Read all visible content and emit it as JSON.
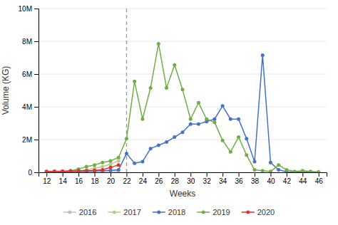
{
  "chart_data": {
    "type": "line",
    "xlabel": "Weeks",
    "ylabel": "Volume (KG)",
    "xlim": [
      11,
      47
    ],
    "ylim": [
      0,
      10000000
    ],
    "xticks": [
      12,
      14,
      16,
      18,
      20,
      22,
      24,
      26,
      28,
      30,
      32,
      34,
      36,
      38,
      40,
      42,
      44,
      46
    ],
    "yticks": [
      0,
      {
        "value": 2000000,
        "label": "2M"
      },
      {
        "value": 4000000,
        "label": "4M"
      },
      {
        "value": 6000000,
        "label": "6M"
      },
      {
        "value": 8000000,
        "label": "8M"
      },
      {
        "value": 10000000,
        "label": "10M"
      }
    ],
    "vline": 22,
    "grid": true,
    "legend": "bottom",
    "marker": "circle",
    "series": [
      {
        "name": "2016",
        "color": "#c0c0c0",
        "x": [
          12,
          13,
          14,
          15,
          16,
          17,
          18,
          19,
          20,
          21
        ],
        "values": [
          20000,
          20000,
          20000,
          30000,
          30000,
          40000,
          50000,
          60000,
          70000,
          80000
        ]
      },
      {
        "name": "2017",
        "color": "#b8cc88",
        "x": [
          12,
          13,
          14,
          15,
          16,
          17,
          18,
          19,
          20,
          21
        ],
        "values": [
          30000,
          30000,
          40000,
          60000,
          100000,
          150000,
          250000,
          350000,
          500000,
          700000
        ]
      },
      {
        "name": "2018",
        "color": "#4472c4",
        "x": [
          12,
          13,
          14,
          15,
          16,
          17,
          18,
          19,
          20,
          21,
          22,
          23,
          24,
          25,
          26,
          27,
          28,
          29,
          30,
          31,
          32,
          33,
          34,
          35,
          36,
          37,
          38,
          39,
          40,
          41,
          42,
          43,
          44,
          45,
          46
        ],
        "values": [
          20000,
          20000,
          30000,
          40000,
          50000,
          70000,
          80000,
          100000,
          120000,
          150000,
          1150000,
          550000,
          650000,
          1450000,
          1650000,
          1850000,
          2150000,
          2450000,
          2950000,
          2950000,
          3100000,
          3250000,
          4050000,
          3250000,
          3250000,
          2050000,
          650000,
          7150000,
          600000,
          150000,
          30000,
          15000,
          10000,
          5000,
          3000
        ]
      },
      {
        "name": "2019",
        "color": "#70ad47",
        "x": [
          12,
          13,
          14,
          15,
          16,
          17,
          18,
          19,
          20,
          21,
          22,
          23,
          24,
          25,
          26,
          27,
          28,
          29,
          30,
          31,
          32,
          33,
          34,
          35,
          36,
          37,
          38,
          39,
          40,
          41,
          42,
          43,
          44,
          45,
          46
        ],
        "values": [
          20000,
          30000,
          50000,
          100000,
          200000,
          350000,
          450000,
          600000,
          700000,
          900000,
          2050000,
          5550000,
          3250000,
          5150000,
          7850000,
          5150000,
          6550000,
          5050000,
          3250000,
          4250000,
          3250000,
          3050000,
          1950000,
          1250000,
          2150000,
          1050000,
          150000,
          100000,
          50000,
          450000,
          150000,
          50000,
          100000,
          50000,
          20000
        ]
      },
      {
        "name": "2020",
        "color": "#e03030",
        "x": [
          12,
          13,
          14,
          15,
          16,
          17,
          18,
          19,
          20,
          21
        ],
        "values": [
          50000,
          60000,
          70000,
          80000,
          90000,
          100000,
          120000,
          150000,
          300000,
          450000
        ]
      }
    ]
  }
}
